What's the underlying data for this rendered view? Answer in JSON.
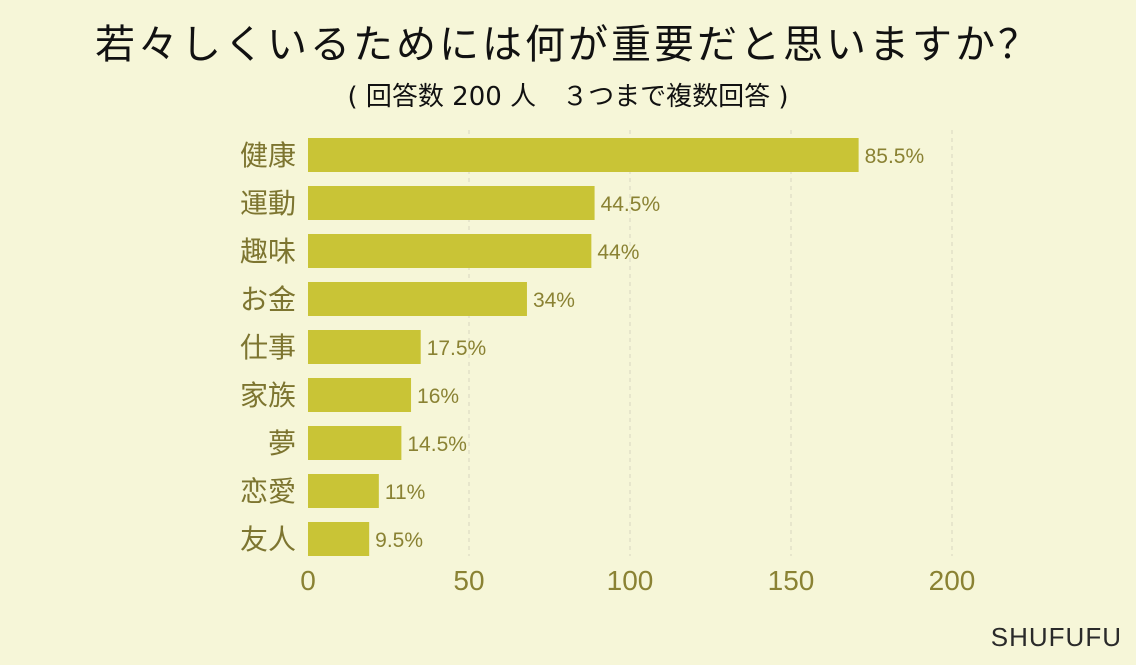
{
  "chart_data": {
    "type": "bar",
    "orientation": "horizontal",
    "title": "若々しくいるためには何が重要だと思いますか？",
    "subtitle": "( 回答数 200 人　３つまで複数回答 )",
    "categories": [
      "健康",
      "運動",
      "趣味",
      "お金",
      "仕事",
      "家族",
      "夢",
      "恋愛",
      "友人"
    ],
    "values": [
      171,
      89,
      88,
      68,
      35,
      32,
      29,
      22,
      19
    ],
    "data_labels": [
      "85.5%",
      "44.5%",
      "44%",
      "34%",
      "17.5%",
      "16%",
      "14.5%",
      "11%",
      "9.5%"
    ],
    "xlim": [
      0,
      200
    ],
    "xticks": [
      "0",
      "50",
      "100",
      "150",
      "200"
    ],
    "grid": true,
    "colors": {
      "bar": "#c9c436",
      "tick_label": "#8a8233",
      "data_label": "#8a8233",
      "category_label": "#7d7530",
      "grid": "#d8d6c0"
    }
  },
  "brand": "SHUFUFU"
}
